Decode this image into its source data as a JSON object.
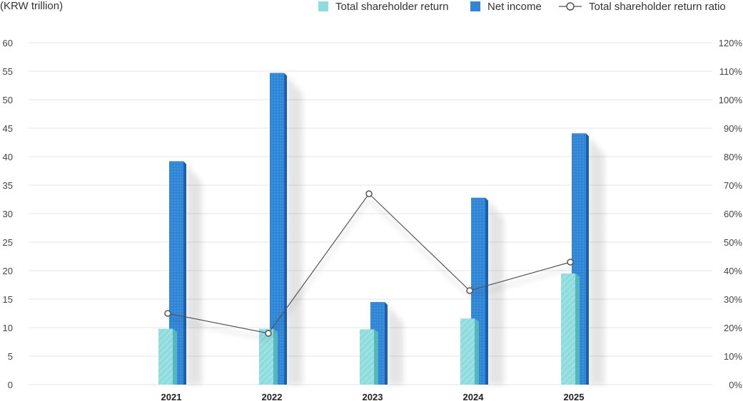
{
  "unit_label": "(KRW trillion)",
  "legend": {
    "tsr": "Total shareholder return",
    "ni": "Net income",
    "ratio": "Total shareholder return ratio"
  },
  "colors": {
    "tsr": "#8edcdd",
    "tsr_dark": "#55b7bb",
    "ni": "#2f86d6",
    "ni_dark": "#1d5fae",
    "line": "#555555",
    "grid": "#e6e6e6"
  },
  "chart_data": {
    "type": "bar",
    "categories": [
      "2021",
      "2022",
      "2023",
      "2024",
      "2025"
    ],
    "series": [
      {
        "name": "Total shareholder return",
        "axis": "left",
        "values": [
          9.8,
          9.8,
          9.7,
          11.6,
          19.5
        ]
      },
      {
        "name": "Net income",
        "axis": "left",
        "values": [
          39.2,
          54.7,
          14.5,
          32.8,
          44.1
        ]
      },
      {
        "name": "Total shareholder return ratio",
        "type": "line",
        "axis": "right",
        "values": [
          25,
          18,
          67,
          33,
          43
        ]
      }
    ],
    "ylabel": "(KRW trillion)",
    "ylim": [
      0,
      60
    ],
    "y_ticks": [
      "0",
      "5",
      "10",
      "15",
      "20",
      "25",
      "30",
      "35",
      "40",
      "45",
      "50",
      "55",
      "60"
    ],
    "y2lim": [
      0,
      120
    ],
    "y2_ticks": [
      "0%",
      "10%",
      "20%",
      "30%",
      "40%",
      "50%",
      "60%",
      "70%",
      "80%",
      "90%",
      "100%",
      "110%",
      "120%"
    ],
    "grid": true,
    "legend_position": "top-right"
  }
}
